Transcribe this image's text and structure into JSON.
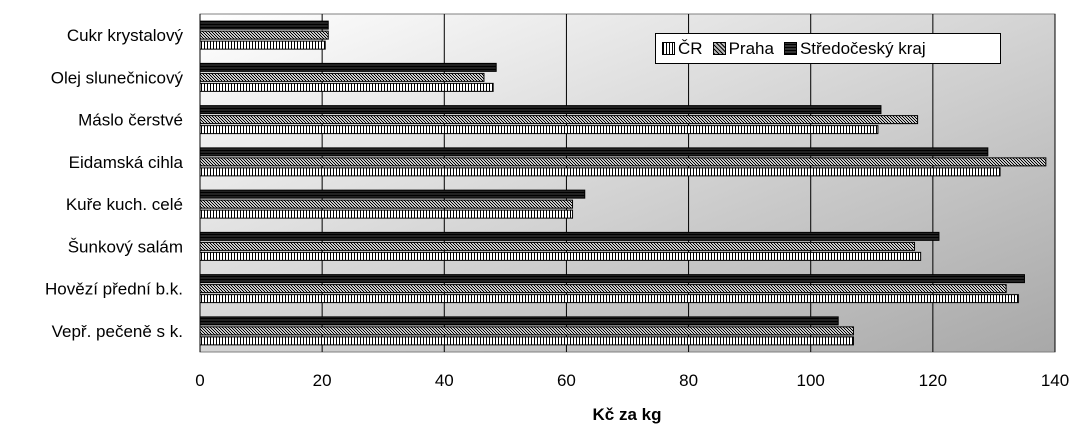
{
  "chart_data": {
    "type": "bar",
    "orientation": "horizontal",
    "categories": [
      "Cukr krystalový",
      "Olej slunečnicový",
      "Máslo čerstvé",
      "Eidamská cihla",
      "Kuře kuch. celé",
      "Šunkový salám",
      "Hovězí přední b.k.",
      "Vepř. pečeně s k."
    ],
    "series": [
      {
        "name": "Středočeský kraj",
        "values": [
          21,
          48.5,
          111.5,
          129,
          63,
          121,
          135,
          104.5
        ]
      },
      {
        "name": "Praha",
        "values": [
          21,
          46.5,
          117.5,
          138.5,
          61,
          117,
          132,
          107
        ]
      },
      {
        "name": "ČR",
        "values": [
          20.5,
          48,
          111,
          131,
          61,
          118,
          134,
          107
        ]
      }
    ],
    "xlabel": "Kč za kg",
    "ylabel": "",
    "xlim": [
      0,
      140
    ],
    "xticks": [
      0,
      20,
      40,
      60,
      80,
      100,
      120,
      140
    ],
    "grid": "vertical",
    "legend_position": "top-right",
    "legend_order": [
      "ČR",
      "Praha",
      "Středočeský kraj"
    ]
  }
}
